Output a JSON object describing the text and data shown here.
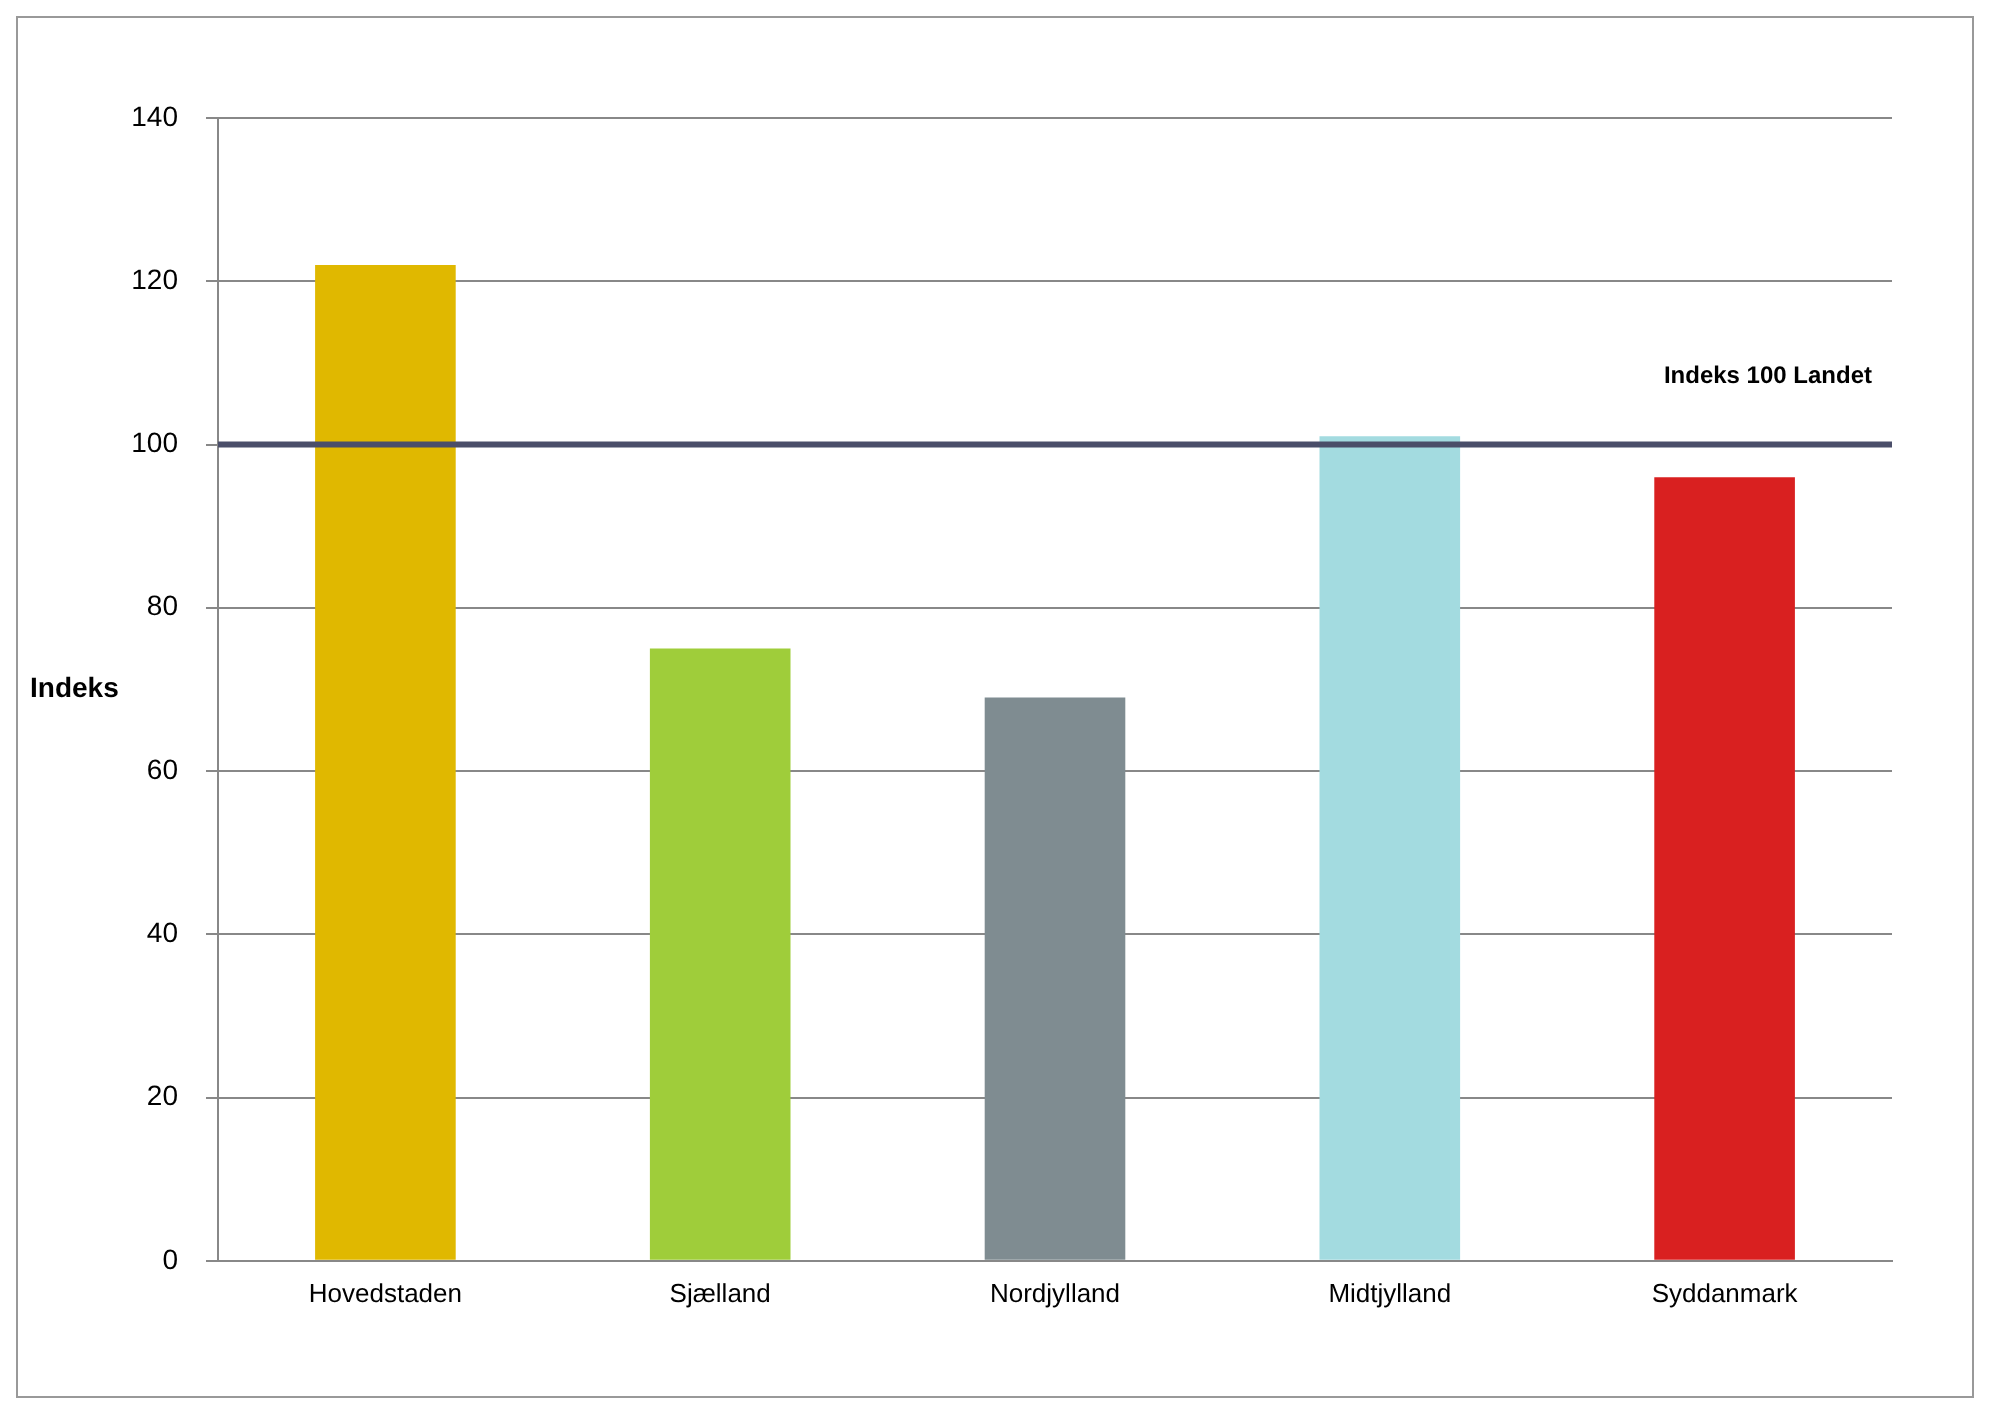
{
  "chart_data": {
    "type": "bar",
    "ylabel": "Indeks",
    "categories": [
      "Hovedstaden",
      "Sjælland",
      "Nordjylland",
      "Midtjylland",
      "Syddanmark"
    ],
    "values": [
      122,
      75,
      69,
      101,
      96
    ],
    "colors": [
      "#e0b800",
      "#9fcd3a",
      "#7f8c91",
      "#a3dbe0",
      "#d92020"
    ],
    "ylim": [
      0,
      140
    ],
    "yticks": [
      0,
      20,
      40,
      60,
      80,
      100,
      120,
      140
    ],
    "grid": "y",
    "ref_lines": [
      {
        "axis": "y",
        "value": 100,
        "label": "Indeks 100 Landet",
        "color": "#4a4e69"
      }
    ]
  }
}
